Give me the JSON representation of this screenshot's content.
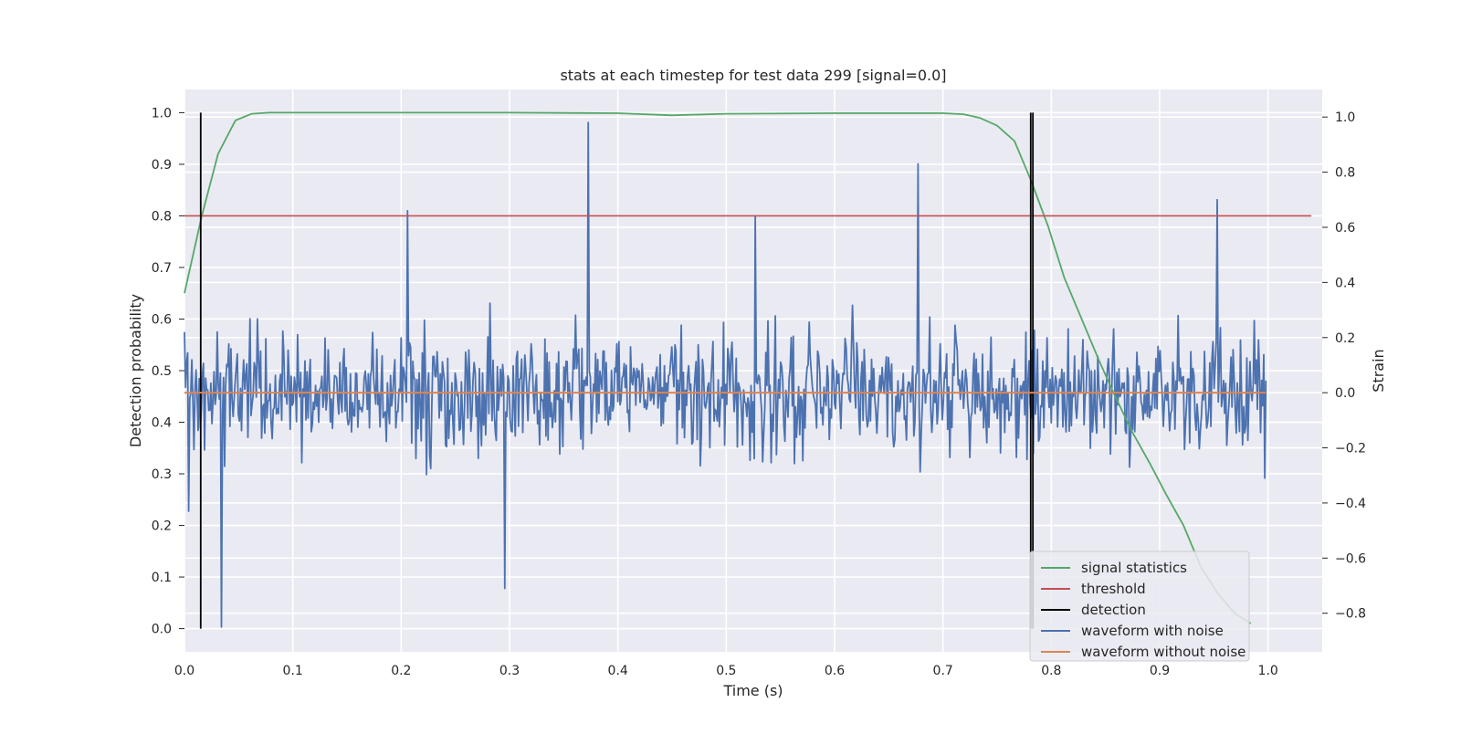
{
  "chart_data": {
    "type": "line",
    "title": "stats at each timestep for test data 299 [signal=0.0]",
    "xlabel": "Time (s)",
    "ylabel_left": "Detection probability",
    "ylabel_right": "Strain",
    "xlim": [
      0.0,
      1.05
    ],
    "ylim_left": [
      -0.045,
      1.045
    ],
    "ylim_right": [
      -0.94,
      1.1
    ],
    "x_ticks": [
      "0.0",
      "0.1",
      "0.2",
      "0.3",
      "0.4",
      "0.5",
      "0.6",
      "0.7",
      "0.8",
      "0.9",
      "1.0"
    ],
    "y_ticks_left": [
      "0.0",
      "0.1",
      "0.2",
      "0.3",
      "0.4",
      "0.5",
      "0.6",
      "0.7",
      "0.8",
      "0.9",
      "1.0"
    ],
    "y_ticks_right": [
      "−0.8",
      "−0.6",
      "−0.4",
      "−0.2",
      "0.0",
      "0.2",
      "0.4",
      "0.6",
      "0.8",
      "1.0"
    ],
    "grid": true,
    "legend_position": "lower-right",
    "series": [
      {
        "name": "signal statistics",
        "color": "#55a868",
        "axis": "left",
        "x": [
          0.0,
          0.016,
          0.031,
          0.047,
          0.062,
          0.078,
          0.1,
          0.2,
          0.3,
          0.4,
          0.45,
          0.5,
          0.6,
          0.7,
          0.719,
          0.734,
          0.75,
          0.766,
          0.781,
          0.797,
          0.812,
          0.828,
          0.844,
          0.859,
          0.875,
          0.891,
          0.906,
          0.922,
          0.938,
          0.953,
          0.969,
          0.984
        ],
        "y": [
          0.65,
          0.8,
          0.92,
          0.985,
          0.998,
          1.0,
          1.0,
          1.0,
          1.0,
          0.999,
          0.995,
          0.998,
          0.999,
          0.999,
          0.997,
          0.99,
          0.975,
          0.945,
          0.87,
          0.78,
          0.68,
          0.6,
          0.52,
          0.45,
          0.38,
          0.32,
          0.26,
          0.2,
          0.12,
          0.07,
          0.03,
          0.01
        ]
      },
      {
        "name": "threshold",
        "color": "#c44e52",
        "axis": "left",
        "x": [
          0.0,
          1.04
        ],
        "y": [
          0.8,
          0.8
        ]
      },
      {
        "name": "detection",
        "color": "#000000",
        "axis": "left",
        "type": "vlines",
        "x": [
          0.015,
          0.781,
          0.783
        ],
        "ymin": 0.0,
        "ymax": 1.0
      },
      {
        "name": "waveform with noise",
        "color": "#4c72b0",
        "axis": "right",
        "x_start": 0.0,
        "x_end": 0.998,
        "n_points": 1024,
        "std": 0.22,
        "seed": 299,
        "peaks": [
          {
            "x": 0.034,
            "y": -0.85
          },
          {
            "x": 0.206,
            "y": 0.66
          },
          {
            "x": 0.296,
            "y": -0.71
          },
          {
            "x": 0.373,
            "y": 0.98
          },
          {
            "x": 0.527,
            "y": 0.64
          },
          {
            "x": 0.677,
            "y": 0.83
          },
          {
            "x": 0.953,
            "y": 0.7
          },
          {
            "x": 0.0,
            "y": 0.22
          },
          {
            "x": 0.004,
            "y": -0.43
          }
        ]
      },
      {
        "name": "waveform without noise",
        "color": "#dd8452",
        "axis": "right",
        "x": [
          0.0,
          0.998
        ],
        "y": [
          0.0,
          0.0
        ]
      }
    ]
  }
}
